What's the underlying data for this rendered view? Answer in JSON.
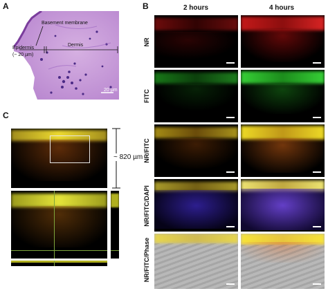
{
  "panels": {
    "a": {
      "label": "A",
      "annotations": {
        "basement_membrane": "Basement membrane",
        "dermis": "Dermis",
        "epidermis": "Epidermis",
        "epidermis_thickness": "(~ 20 µm)",
        "scale_bar": "20 µm"
      }
    },
    "b": {
      "label": "B",
      "columns": [
        "2 hours",
        "4 hours"
      ],
      "rows": [
        "NR",
        "FITC",
        "NR/FITC",
        "NR/FITC/DAPI",
        "NR/FITC/Phase"
      ]
    },
    "c": {
      "label": "C",
      "depth_label": "~ 820 µm"
    }
  },
  "colors": {
    "he_stain": "#c79ad8",
    "nr": "#d81c1c",
    "fitc": "#2fd12f",
    "merge": "#f2d21a",
    "dapi": "#3b2bb8",
    "phase": "#b8b8b8"
  }
}
